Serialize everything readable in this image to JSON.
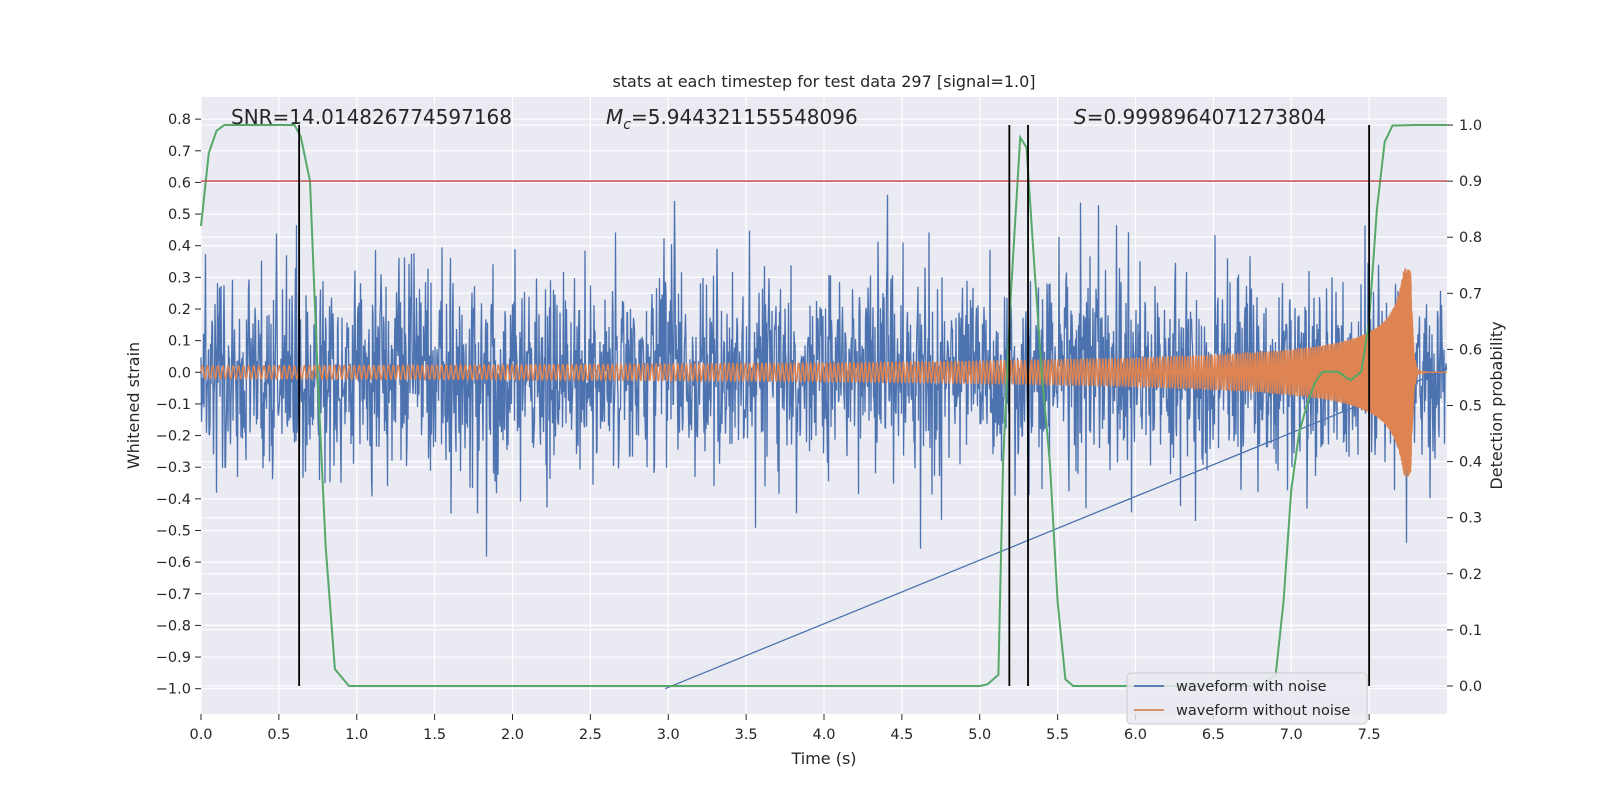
{
  "chart_data": {
    "type": "line",
    "title": "stats at each timestep for test data 297 [signal=1.0]",
    "xlabel": "Time (s)",
    "ylabel": "Whitened strain",
    "ylabel_right": "Detection probability",
    "xlim": [
      0.0,
      8.0
    ],
    "ylim": [
      -1.08,
      0.87
    ],
    "ylim_right": [
      -0.05,
      1.05
    ],
    "x_ticks": [
      "0.0",
      "0.5",
      "1.0",
      "1.5",
      "2.0",
      "2.5",
      "3.0",
      "3.5",
      "4.0",
      "4.5",
      "5.0",
      "5.5",
      "6.0",
      "6.5",
      "7.0",
      "7.5"
    ],
    "y_ticks": [
      "0.8",
      "0.7",
      "0.6",
      "0.5",
      "0.4",
      "0.3",
      "0.2",
      "0.1",
      "0.0",
      "−0.1",
      "−0.2",
      "−0.3",
      "−0.4",
      "−0.5",
      "−0.6",
      "−0.7",
      "−0.8",
      "−0.9",
      "−1.0"
    ],
    "y_ticks_right": [
      "1.0",
      "0.9",
      "0.8",
      "0.7",
      "0.6",
      "0.5",
      "0.4",
      "0.3",
      "0.2",
      "0.1",
      "0.0"
    ],
    "annotations": {
      "snr": "SNR=14.014826774597168",
      "mc_symbol": "M",
      "mc_sub": "c",
      "mc_value": "=5.944321155548096",
      "s_symbol": "S",
      "s_value": "=0.9998964071273804"
    },
    "threshold": 0.9,
    "vertical_lines_s": [
      0.63,
      5.19,
      5.31,
      7.5
    ],
    "series": [
      {
        "name": "waveform with noise",
        "color": "#4c72b0",
        "noise_sigma": 0.16,
        "duration_s": 8.0
      },
      {
        "name": "waveform without noise",
        "color": "#dd8452",
        "amp_start": 0.02,
        "amp_peak": 0.33,
        "merger_time_s": 7.77,
        "f_start_hz": 30
      },
      {
        "name": "detection probability",
        "color": "#55a868",
        "t": [
          0.0,
          0.05,
          0.1,
          0.15,
          0.3,
          0.4,
          0.5,
          0.6,
          0.64,
          0.7,
          0.75,
          0.8,
          0.86,
          0.95,
          1.1,
          1.5,
          2.0,
          2.5,
          3.0,
          3.5,
          4.0,
          4.5,
          5.0,
          5.05,
          5.12,
          5.15,
          5.2,
          5.26,
          5.3,
          5.35,
          5.4,
          5.45,
          5.5,
          5.55,
          5.6,
          5.7,
          6.0,
          6.5,
          6.8,
          6.9,
          6.95,
          7.0,
          7.05,
          7.1,
          7.15,
          7.2,
          7.3,
          7.38,
          7.45,
          7.5,
          7.55,
          7.6,
          7.65,
          7.8,
          8.0
        ],
        "p": [
          0.82,
          0.95,
          0.99,
          1.0,
          1.0,
          1.0,
          1.0,
          1.0,
          0.98,
          0.9,
          0.55,
          0.25,
          0.03,
          0.0,
          0.0,
          0.0,
          0.0,
          0.0,
          0.0,
          0.0,
          0.0,
          0.0,
          0.0,
          0.003,
          0.02,
          0.4,
          0.7,
          0.978,
          0.96,
          0.75,
          0.55,
          0.4,
          0.15,
          0.012,
          0.0,
          0.0,
          0.0,
          0.0,
          0.0,
          0.02,
          0.15,
          0.35,
          0.45,
          0.5,
          0.54,
          0.56,
          0.56,
          0.545,
          0.56,
          0.65,
          0.85,
          0.97,
          0.999,
          1.0,
          1.0
        ]
      }
    ],
    "legend": {
      "position": "lower-right",
      "entries": [
        "waveform with noise",
        "waveform without noise"
      ]
    },
    "colors": {
      "axes_bg": "#eaeaf2",
      "grid": "#ffffff",
      "threshold_line": "#c44e52",
      "vertical_line": "#000000"
    }
  }
}
